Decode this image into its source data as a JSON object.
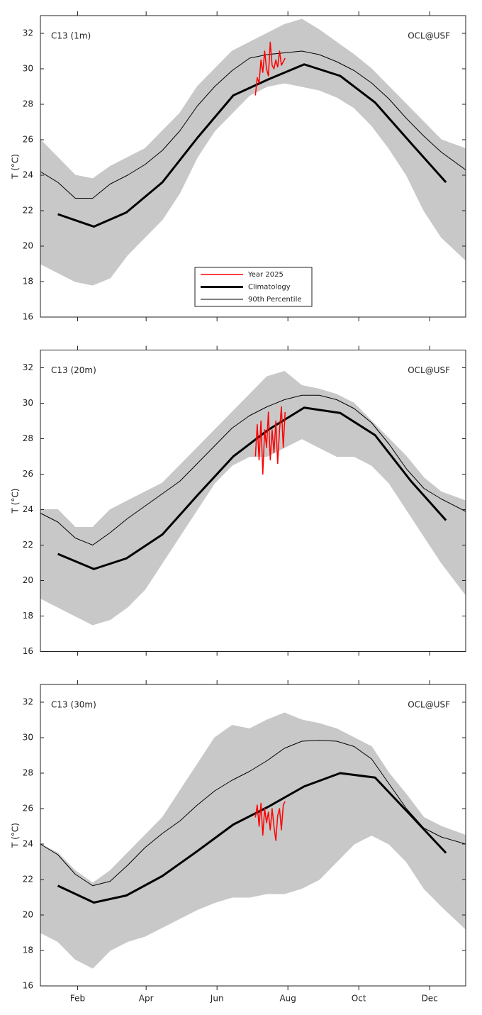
{
  "chart_data": [
    {
      "type": "line",
      "annotations": [
        "C13 (1m)",
        "OCL@USF"
      ],
      "ylabel": "T (°C)",
      "xlim": [
        0,
        366
      ],
      "ylim": [
        16,
        33
      ],
      "yticks": [
        16,
        18,
        20,
        22,
        24,
        26,
        28,
        30,
        32
      ],
      "xticks": [
        {
          "value": 32,
          "label": "Feb"
        },
        {
          "value": 91,
          "label": "Apr"
        },
        {
          "value": 152,
          "label": "Jun"
        },
        {
          "value": 213,
          "label": "Aug"
        },
        {
          "value": 274,
          "label": "Oct"
        },
        {
          "value": 335,
          "label": "Dec"
        }
      ],
      "xticklabels": false,
      "legend": "lower center",
      "band": {
        "color": "#c8c8c8",
        "x": [
          0,
          15,
          30,
          45,
          60,
          75,
          90,
          105,
          120,
          135,
          150,
          165,
          180,
          195,
          210,
          225,
          240,
          255,
          270,
          285,
          300,
          315,
          330,
          345,
          366
        ],
        "low": [
          19,
          18.5,
          18,
          17.8,
          18.2,
          19.5,
          20.5,
          21.5,
          23,
          25,
          26.5,
          27.5,
          28.5,
          29,
          29.2,
          29,
          28.8,
          28.4,
          27.8,
          26.8,
          25.5,
          24,
          22,
          20.5,
          19.2
        ],
        "high": [
          26,
          25,
          24,
          23.8,
          24.5,
          25,
          25.5,
          26.5,
          27.5,
          29,
          30,
          31,
          31.5,
          32,
          32.5,
          32.8,
          32.2,
          31.5,
          30.8,
          30,
          29,
          28,
          27,
          26,
          25.5
        ]
      },
      "series": [
        {
          "name": "Year 2025",
          "color": "#ff0000",
          "width": 1.5,
          "x": [
            185,
            186.6,
            188.2,
            189.8,
            191.4,
            193,
            194.6,
            196.2,
            197.8,
            199.4,
            201,
            202.6,
            204.2,
            205.8,
            207.4,
            209,
            210.6
          ],
          "values": [
            28.5,
            29.5,
            29.2,
            30.5,
            29.8,
            31,
            30,
            29.6,
            31.5,
            30.2,
            30,
            30.5,
            30.1,
            31,
            30.2,
            30.4,
            30.6
          ]
        },
        {
          "name": "Climatology",
          "color": "#000000",
          "width": 3,
          "x": [
            15,
            46,
            74,
            105,
            135,
            166,
            196,
            227,
            258,
            288,
            319,
            349
          ],
          "values": [
            21.8,
            21.1,
            21.9,
            23.6,
            26.1,
            28.5,
            29.4,
            30.25,
            29.6,
            28.1,
            25.8,
            23.6
          ]
        },
        {
          "name": "90th Percentile",
          "color": "#000000",
          "width": 1,
          "x": [
            0,
            15,
            30,
            45,
            60,
            75,
            90,
            105,
            120,
            135,
            150,
            165,
            180,
            195,
            210,
            225,
            240,
            255,
            270,
            285,
            300,
            315,
            330,
            345,
            366
          ],
          "values": [
            24.2,
            23.6,
            22.7,
            22.7,
            23.5,
            24,
            24.6,
            25.4,
            26.5,
            27.9,
            29,
            29.9,
            30.6,
            30.8,
            30.9,
            31,
            30.8,
            30.4,
            29.9,
            29.2,
            28.3,
            27.2,
            26.2,
            25.3,
            24.3
          ]
        }
      ]
    },
    {
      "type": "line",
      "annotations": [
        "C13 (20m)",
        "OCL@USF"
      ],
      "ylabel": "T (°C)",
      "xlim": [
        0,
        366
      ],
      "ylim": [
        16,
        33
      ],
      "yticks": [
        16,
        18,
        20,
        22,
        24,
        26,
        28,
        30,
        32
      ],
      "xticks": [
        {
          "value": 32,
          "label": "Feb"
        },
        {
          "value": 91,
          "label": "Apr"
        },
        {
          "value": 152,
          "label": "Jun"
        },
        {
          "value": 213,
          "label": "Aug"
        },
        {
          "value": 274,
          "label": "Oct"
        },
        {
          "value": 335,
          "label": "Dec"
        }
      ],
      "xticklabels": false,
      "band": {
        "color": "#c8c8c8",
        "x": [
          0,
          15,
          30,
          45,
          60,
          75,
          90,
          105,
          120,
          135,
          150,
          165,
          180,
          195,
          210,
          225,
          240,
          255,
          270,
          285,
          300,
          315,
          330,
          345,
          366
        ],
        "low": [
          19,
          18.5,
          18,
          17.5,
          17.8,
          18.5,
          19.5,
          21,
          22.5,
          24,
          25.5,
          26.5,
          27,
          27,
          27.5,
          28,
          27.5,
          27,
          27,
          26.5,
          25.5,
          24,
          22.5,
          21,
          19.2
        ],
        "high": [
          24,
          24,
          23,
          23,
          24,
          24.5,
          25,
          25.5,
          26.5,
          27.5,
          28.5,
          29.5,
          30.5,
          31.5,
          31.8,
          31,
          30.8,
          30.5,
          30,
          29,
          28,
          27,
          25.8,
          25,
          24.5
        ]
      },
      "series": [
        {
          "color": "#ff0000",
          "width": 1.5,
          "x": [
            185,
            186.6,
            188.2,
            189.8,
            191.4,
            193,
            194.6,
            196.2,
            197.8,
            199.4,
            201,
            202.6,
            204.2,
            205.8,
            207.4,
            209,
            210.6
          ],
          "values": [
            27,
            28.8,
            26.8,
            29,
            26,
            28.5,
            27.5,
            29.5,
            26.8,
            28.5,
            27.2,
            29,
            26.6,
            28.5,
            29.8,
            27.5,
            29.5
          ]
        },
        {
          "color": "#000000",
          "width": 3,
          "x": [
            15,
            46,
            74,
            105,
            135,
            166,
            196,
            227,
            258,
            288,
            319,
            349
          ],
          "values": [
            21.5,
            20.65,
            21.25,
            22.6,
            24.8,
            27,
            28.5,
            29.75,
            29.45,
            28.2,
            25.6,
            23.4
          ]
        },
        {
          "color": "#000000",
          "width": 1,
          "x": [
            0,
            15,
            30,
            45,
            60,
            75,
            90,
            105,
            120,
            135,
            150,
            165,
            180,
            195,
            210,
            225,
            240,
            255,
            270,
            285,
            300,
            315,
            330,
            345,
            366
          ],
          "values": [
            23.8,
            23.3,
            22.4,
            22,
            22.7,
            23.5,
            24.2,
            24.9,
            25.6,
            26.6,
            27.6,
            28.6,
            29.3,
            29.8,
            30.2,
            30.45,
            30.45,
            30.2,
            29.7,
            28.9,
            27.7,
            26.3,
            25.2,
            24.6,
            23.9
          ]
        }
      ]
    },
    {
      "type": "line",
      "annotations": [
        "C13 (30m)",
        "OCL@USF"
      ],
      "ylabel": "T (°C)",
      "xlim": [
        0,
        366
      ],
      "ylim": [
        16,
        33
      ],
      "yticks": [
        16,
        18,
        20,
        22,
        24,
        26,
        28,
        30,
        32
      ],
      "xticks": [
        {
          "value": 32,
          "label": "Feb"
        },
        {
          "value": 91,
          "label": "Apr"
        },
        {
          "value": 152,
          "label": "Jun"
        },
        {
          "value": 213,
          "label": "Aug"
        },
        {
          "value": 274,
          "label": "Oct"
        },
        {
          "value": 335,
          "label": "Dec"
        }
      ],
      "xticklabels": true,
      "band": {
        "color": "#c8c8c8",
        "x": [
          0,
          15,
          30,
          45,
          60,
          75,
          90,
          105,
          120,
          135,
          150,
          165,
          180,
          195,
          210,
          225,
          240,
          255,
          270,
          285,
          300,
          315,
          330,
          345,
          366
        ],
        "low": [
          19,
          18.5,
          17.5,
          17,
          18,
          18.5,
          18.8,
          19.3,
          19.8,
          20.3,
          20.7,
          21,
          21,
          21.2,
          21.2,
          21.5,
          22,
          23,
          24,
          24.5,
          24,
          23,
          21.5,
          20.5,
          19.2
        ],
        "high": [
          24,
          23.5,
          22.5,
          21.8,
          22.5,
          23.5,
          24.5,
          25.5,
          27,
          28.5,
          30,
          30.7,
          30.5,
          31,
          31.4,
          31,
          30.8,
          30.5,
          30,
          29.5,
          28,
          26.8,
          25.5,
          25,
          24.5
        ]
      },
      "series": [
        {
          "color": "#ff0000",
          "width": 1.5,
          "x": [
            185,
            186.6,
            188.2,
            189.8,
            191.4,
            193,
            194.6,
            196.2,
            197.8,
            199.4,
            201,
            202.6,
            204.2,
            205.8,
            207.4,
            209,
            210.6
          ],
          "values": [
            25.5,
            26.2,
            25,
            26.3,
            24.5,
            26,
            25.2,
            25.8,
            24.8,
            26,
            25,
            24.2,
            25.6,
            26,
            24.8,
            26.2,
            26.4
          ]
        },
        {
          "color": "#000000",
          "width": 3,
          "x": [
            15,
            46,
            74,
            105,
            135,
            166,
            196,
            227,
            258,
            288,
            319,
            349
          ],
          "values": [
            21.65,
            20.7,
            21.1,
            22.2,
            23.6,
            25.1,
            26.1,
            27.25,
            28,
            27.75,
            25.6,
            23.5
          ]
        },
        {
          "color": "#000000",
          "width": 1,
          "x": [
            0,
            15,
            30,
            45,
            60,
            75,
            90,
            105,
            120,
            135,
            150,
            165,
            180,
            195,
            210,
            225,
            240,
            255,
            270,
            285,
            300,
            315,
            330,
            345,
            366
          ],
          "values": [
            24,
            23.4,
            22.3,
            21.65,
            21.9,
            22.8,
            23.8,
            24.6,
            25.3,
            26.2,
            27,
            27.6,
            28.1,
            28.7,
            29.4,
            29.8,
            29.85,
            29.8,
            29.5,
            28.8,
            27.4,
            26,
            24.9,
            24.4,
            24
          ]
        }
      ]
    }
  ]
}
